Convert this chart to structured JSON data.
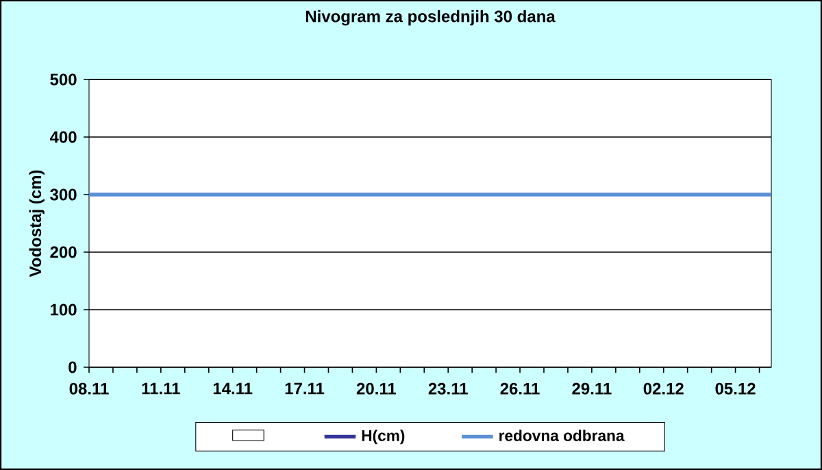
{
  "chart_data": {
    "type": "line",
    "title": "Nivogram za poslednjih 30 dana",
    "ylabel": "Vodostaj (cm)",
    "ylim": [
      0,
      500
    ],
    "yticks": [
      0,
      100,
      200,
      300,
      400,
      500
    ],
    "categories": [
      "08.11",
      null,
      null,
      "11.11",
      null,
      null,
      "14.11",
      null,
      null,
      "17.11",
      null,
      null,
      "20.11",
      null,
      null,
      "23.11",
      null,
      null,
      "26.11",
      null,
      null,
      "29.11",
      null,
      null,
      "02.12",
      null,
      null,
      "05.12",
      null
    ],
    "grid": "y",
    "legend": "bottom",
    "series": [
      {
        "type": "bar",
        "color": "#ffffff",
        "values": [
          null,
          null,
          null,
          null,
          null,
          null,
          null,
          null,
          null,
          null,
          null,
          null,
          null,
          null,
          null,
          null,
          null,
          null,
          null,
          null,
          null,
          null,
          null,
          null,
          null,
          null,
          null,
          null,
          null
        ]
      },
      {
        "name": "H(cm)",
        "color": "#333399",
        "values": [
          null,
          null,
          null,
          null,
          null,
          null,
          null,
          null,
          null,
          null,
          null,
          null,
          null,
          null,
          null,
          null,
          null,
          null,
          null,
          null,
          null,
          null,
          null,
          null,
          null,
          null,
          null,
          null,
          null
        ]
      }
    ],
    "ref_lines": [
      {
        "axis": "y",
        "value": 300,
        "label": "redovna odbrana",
        "color": "#5b8fd6"
      }
    ]
  }
}
